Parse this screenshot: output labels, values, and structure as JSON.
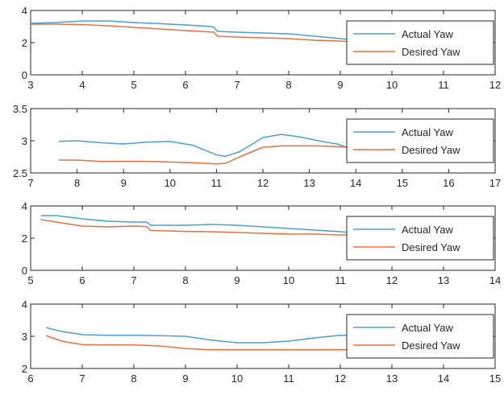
{
  "chart_data": [
    {
      "type": "line",
      "title": "",
      "xlabel": "",
      "ylabel": "",
      "xlim": [
        3,
        12
      ],
      "ylim": [
        0,
        4
      ],
      "xticks": [
        "3",
        "4",
        "5",
        "6",
        "7",
        "8",
        "9",
        "10",
        "11",
        "12"
      ],
      "yticks": [
        "0",
        "2",
        "4"
      ],
      "legend": "inside right",
      "series": [
        {
          "name": "Actual Yaw",
          "color": "#4a9fd5",
          "x": [
            3.0,
            3.5,
            4.0,
            4.5,
            5.0,
            5.5,
            6.0,
            6.5,
            6.55,
            6.62,
            7.0,
            7.5,
            8.0,
            8.5,
            9.0,
            9.2
          ],
          "y": [
            3.2,
            3.25,
            3.35,
            3.35,
            3.25,
            3.18,
            3.1,
            3.0,
            2.95,
            2.7,
            2.65,
            2.6,
            2.55,
            2.4,
            2.25,
            2.2
          ]
        },
        {
          "name": "Desired Yaw",
          "color": "#e8703f",
          "x": [
            3.0,
            3.5,
            4.0,
            4.5,
            5.0,
            5.5,
            6.0,
            6.55,
            6.62,
            7.0,
            7.5,
            8.0,
            8.5,
            9.0,
            9.2
          ],
          "y": [
            3.15,
            3.15,
            3.12,
            3.05,
            2.95,
            2.85,
            2.75,
            2.65,
            2.4,
            2.35,
            2.3,
            2.25,
            2.15,
            2.1,
            2.05
          ]
        }
      ]
    },
    {
      "type": "line",
      "title": "",
      "xlabel": "",
      "ylabel": "",
      "xlim": [
        7,
        17
      ],
      "ylim": [
        2.5,
        3.5
      ],
      "xticks": [
        "7",
        "8",
        "9",
        "10",
        "11",
        "12",
        "13",
        "14",
        "15",
        "16",
        "17"
      ],
      "yticks": [
        "2.5",
        "3",
        "3.5"
      ],
      "legend": "inside right",
      "series": [
        {
          "name": "Actual Yaw",
          "color": "#4a9fd5",
          "x": [
            7.6,
            8.0,
            8.5,
            9.0,
            9.5,
            10.0,
            10.5,
            11.0,
            11.2,
            11.5,
            12.0,
            12.4,
            12.8,
            13.2,
            13.6,
            13.8
          ],
          "y": [
            2.99,
            3.0,
            2.97,
            2.95,
            2.98,
            2.99,
            2.93,
            2.78,
            2.76,
            2.83,
            3.05,
            3.1,
            3.06,
            3.0,
            2.95,
            2.9
          ]
        },
        {
          "name": "Desired Yaw",
          "color": "#e8703f",
          "x": [
            7.6,
            8.0,
            8.5,
            9.0,
            9.5,
            10.0,
            10.5,
            11.0,
            11.2,
            11.5,
            12.0,
            12.4,
            12.8,
            13.2,
            13.6,
            13.8
          ],
          "y": [
            2.7,
            2.7,
            2.68,
            2.68,
            2.68,
            2.67,
            2.66,
            2.64,
            2.65,
            2.75,
            2.9,
            2.92,
            2.92,
            2.92,
            2.91,
            2.9
          ]
        }
      ]
    },
    {
      "type": "line",
      "title": "",
      "xlabel": "",
      "ylabel": "",
      "xlim": [
        5,
        14
      ],
      "ylim": [
        0,
        4
      ],
      "xticks": [
        "5",
        "6",
        "7",
        "8",
        "9",
        "10",
        "11",
        "12",
        "13",
        "14"
      ],
      "yticks": [
        "0",
        "2",
        "4"
      ],
      "legend": "inside right",
      "series": [
        {
          "name": "Actual Yaw",
          "color": "#4a9fd5",
          "x": [
            5.2,
            5.5,
            6.0,
            6.5,
            7.0,
            7.25,
            7.32,
            7.6,
            8.0,
            8.5,
            9.0,
            9.5,
            10.0,
            10.5,
            11.0,
            11.2
          ],
          "y": [
            3.4,
            3.4,
            3.2,
            3.05,
            3.0,
            3.0,
            2.8,
            2.8,
            2.8,
            2.85,
            2.8,
            2.7,
            2.6,
            2.5,
            2.4,
            2.35
          ]
        },
        {
          "name": "Desired Yaw",
          "color": "#e8703f",
          "x": [
            5.2,
            5.5,
            6.0,
            6.5,
            7.0,
            7.25,
            7.32,
            7.6,
            8.0,
            8.5,
            9.0,
            9.5,
            10.0,
            10.5,
            11.0,
            11.2
          ],
          "y": [
            3.15,
            3.0,
            2.75,
            2.7,
            2.75,
            2.72,
            2.48,
            2.45,
            2.42,
            2.4,
            2.35,
            2.3,
            2.25,
            2.25,
            2.2,
            2.2
          ]
        }
      ]
    },
    {
      "type": "line",
      "title": "",
      "xlabel": "",
      "ylabel": "",
      "xlim": [
        6,
        15
      ],
      "ylim": [
        2,
        4
      ],
      "xticks": [
        "6",
        "7",
        "8",
        "9",
        "10",
        "11",
        "12",
        "13",
        "14",
        "15"
      ],
      "yticks": [
        "2",
        "3",
        "4"
      ],
      "legend": "inside right",
      "series": [
        {
          "name": "Actual Yaw",
          "color": "#4a9fd5",
          "x": [
            6.3,
            6.6,
            7.0,
            7.5,
            8.0,
            8.5,
            9.0,
            9.5,
            10.0,
            10.5,
            11.0,
            11.5,
            12.0,
            12.3
          ],
          "y": [
            3.27,
            3.15,
            3.05,
            3.03,
            3.03,
            3.02,
            3.0,
            2.88,
            2.8,
            2.8,
            2.85,
            2.95,
            3.03,
            3.03
          ]
        },
        {
          "name": "Desired Yaw",
          "color": "#e8703f",
          "x": [
            6.3,
            6.6,
            7.0,
            7.5,
            8.0,
            8.5,
            9.0,
            9.5,
            10.0,
            10.5,
            11.0,
            11.5,
            12.0,
            12.3
          ],
          "y": [
            3.02,
            2.85,
            2.74,
            2.73,
            2.73,
            2.7,
            2.62,
            2.58,
            2.58,
            2.58,
            2.58,
            2.58,
            2.58,
            2.58
          ]
        }
      ]
    }
  ]
}
